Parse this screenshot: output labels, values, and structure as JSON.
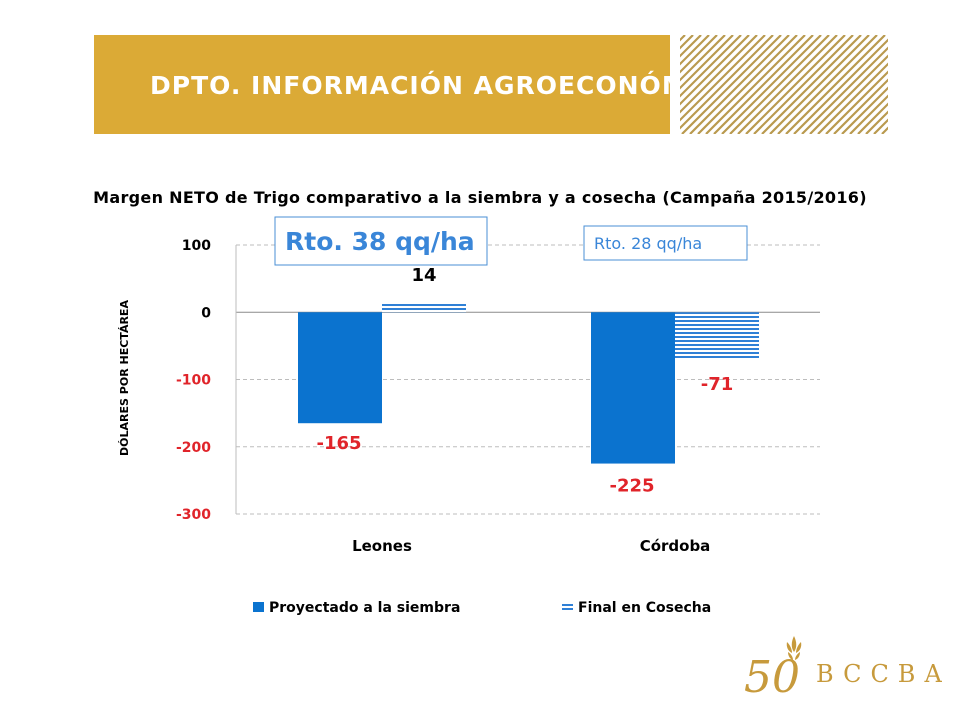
{
  "header": {
    "title": "DPTO. INFORMACIÓN AGROECONÓMICA",
    "accent_color": "#dbaa36",
    "stripe_color": "#b99a4f"
  },
  "chart_data": {
    "type": "bar",
    "title": "Margen NETO de Trigo comparativo a la siembra y a cosecha (Campaña 2015/2016)",
    "ylabel": "DÓLARES POR HECTÁREA",
    "xlabel": "",
    "categories": [
      "Leones",
      "Córdoba"
    ],
    "series": [
      {
        "name": "Proyectado a la siembra",
        "values": [
          -165,
          -225
        ],
        "color": "#0b73cf",
        "pattern": "solid"
      },
      {
        "name": "Final en Cosecha",
        "values": [
          14,
          -71
        ],
        "color": "#2f80d6",
        "pattern": "horizontal-lines"
      }
    ],
    "data_labels": [
      {
        "series": 0,
        "category": 0,
        "text": "-165",
        "color": "#e0242a"
      },
      {
        "series": 0,
        "category": 1,
        "text": "-225",
        "color": "#e0242a"
      },
      {
        "series": 1,
        "category": 0,
        "text": "14",
        "color": "#000000"
      },
      {
        "series": 1,
        "category": 1,
        "text": "-71",
        "color": "#e0242a"
      }
    ],
    "ylim": [
      -300,
      100
    ],
    "yticks": [
      100,
      0,
      -100,
      -200,
      -300
    ],
    "ytick_labels": [
      "100",
      "0",
      "-100",
      "-200",
      "-300"
    ],
    "negative_tick_color": "#e0242a",
    "grid": true,
    "legend_position": "bottom",
    "annotations": [
      {
        "text": "Rto. 38 qq/ha",
        "category": 0,
        "emphasis": "large"
      },
      {
        "text": "Rto. 28 qq/ha",
        "category": 1,
        "emphasis": "small"
      }
    ]
  },
  "logo": {
    "number": "50",
    "text": "BCCBA"
  }
}
